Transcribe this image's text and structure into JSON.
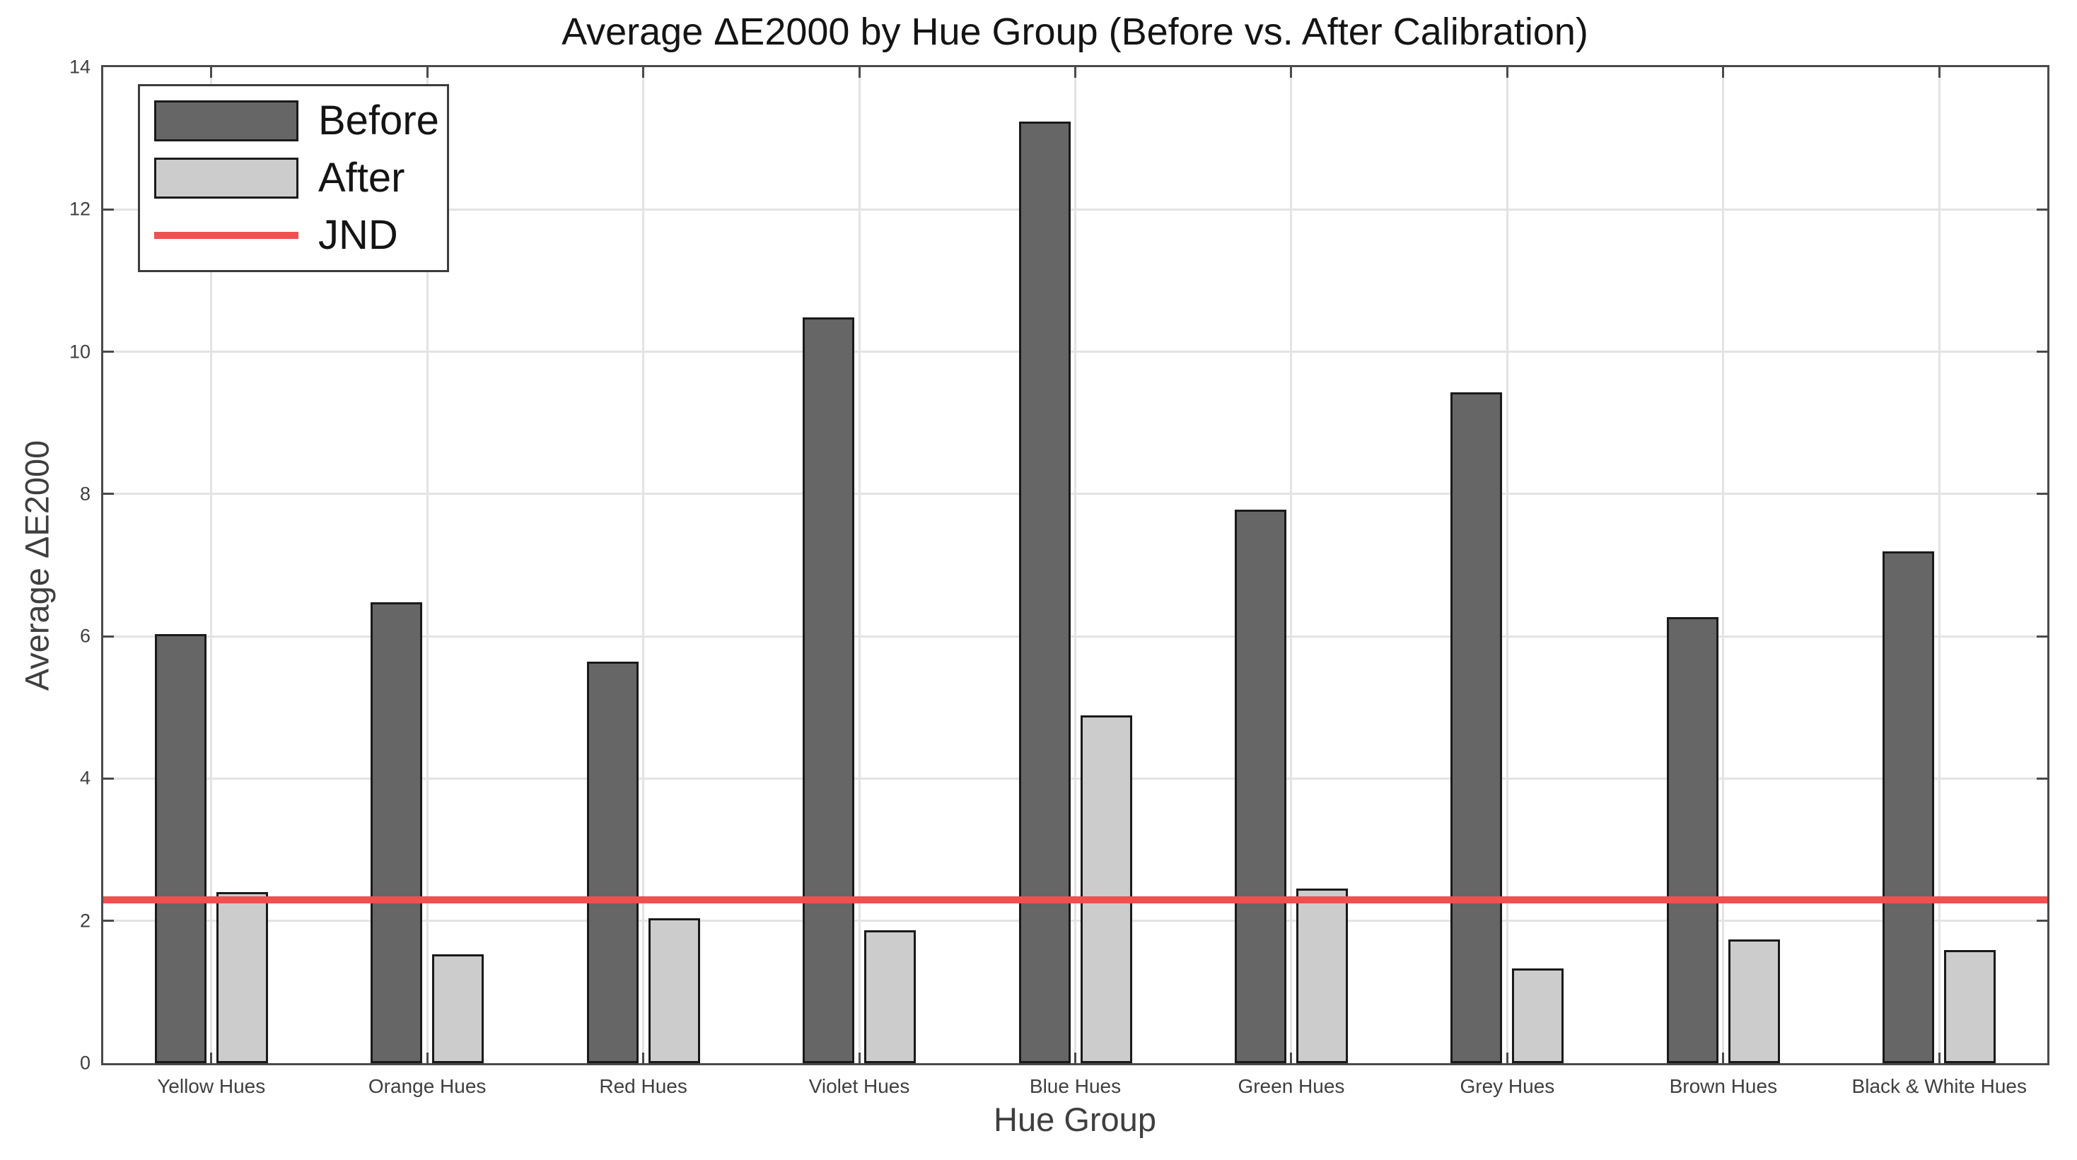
{
  "chart_data": {
    "type": "bar",
    "title": "Average ΔE2000 by Hue Group (Before vs. After Calibration)",
    "xlabel": "Hue Group",
    "ylabel": "Average ΔE2000",
    "ylim": [
      0,
      14
    ],
    "yticks": [
      0,
      2,
      4,
      6,
      8,
      10,
      12,
      14
    ],
    "grid": true,
    "legend_position": "top-left",
    "categories": [
      "Yellow Hues",
      "Orange Hues",
      "Red Hues",
      "Violet Hues",
      "Blue Hues",
      "Green Hues",
      "Grey Hues",
      "Brown Hues",
      "Black & White Hues"
    ],
    "series": [
      {
        "name": "Before",
        "color": "#666666",
        "values": [
          6.03,
          6.48,
          5.64,
          10.48,
          13.23,
          7.78,
          9.43,
          6.27,
          7.19
        ]
      },
      {
        "name": "After",
        "color": "#cccccc",
        "values": [
          2.4,
          1.53,
          2.04,
          1.87,
          4.89,
          2.45,
          1.33,
          1.74,
          1.59
        ]
      }
    ],
    "reference_line": {
      "name": "JND",
      "value": 2.3,
      "color": "#f05050"
    },
    "colors": {
      "axis_frame": "#4a4a4a",
      "gridline": "#e3e3e3",
      "bar_edge": "#1a1a1a",
      "text": "#3f3f3f",
      "title_text": "#141414"
    }
  }
}
